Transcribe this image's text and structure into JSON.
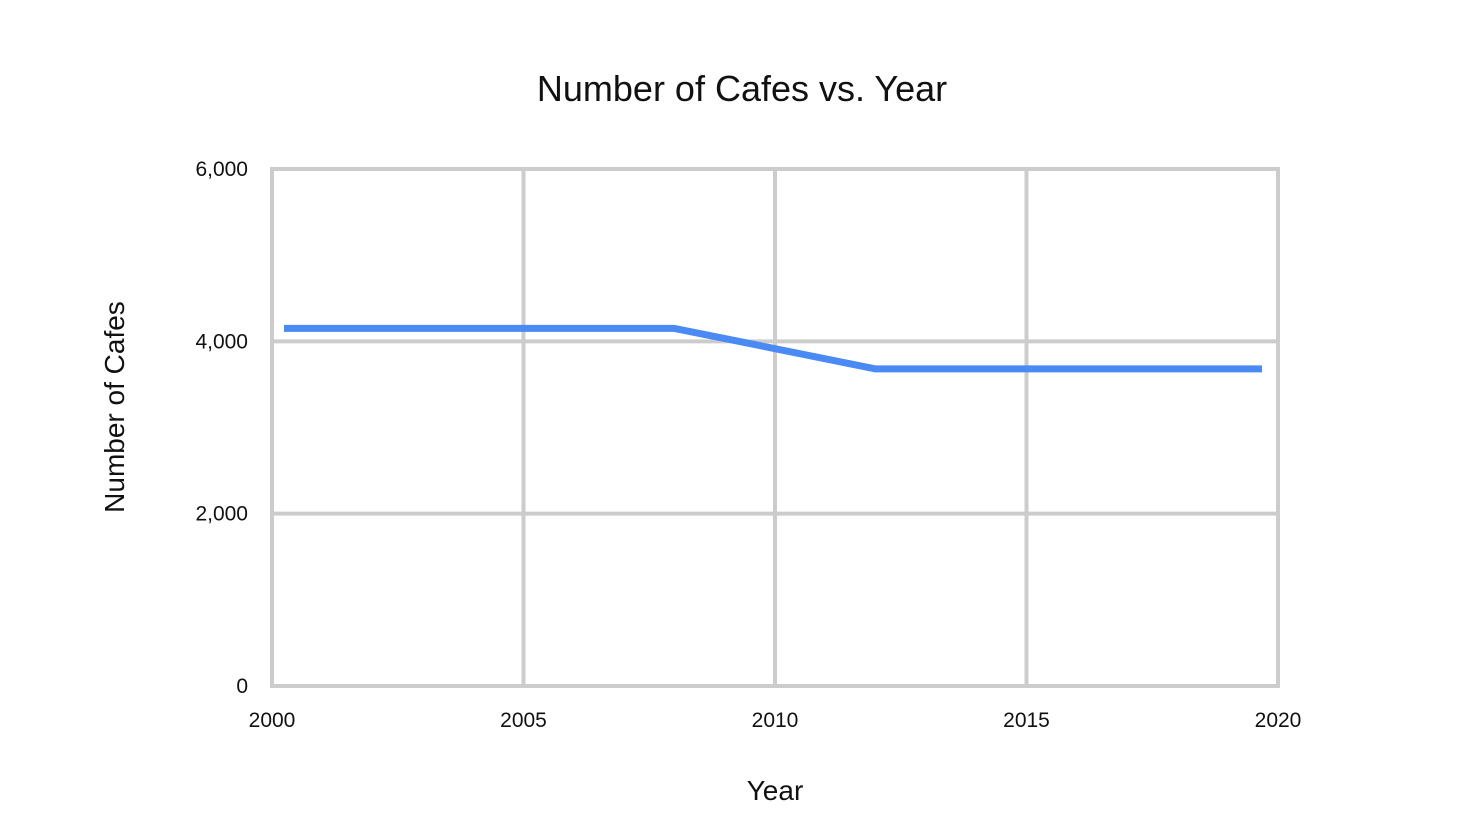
{
  "chart_data": {
    "type": "line",
    "title": "Number of Cafes vs. Year",
    "xlabel": "Year",
    "ylabel": "Number of Cafes",
    "xlim": [
      2000,
      2020
    ],
    "ylim": [
      0,
      6000
    ],
    "x_ticks": [
      2000,
      2005,
      2010,
      2015,
      2020
    ],
    "x_tick_labels": [
      "2000",
      "2005",
      "2010",
      "2015",
      "2020"
    ],
    "y_ticks": [
      0,
      2000,
      4000,
      6000
    ],
    "y_tick_labels": [
      "0",
      "2,000",
      "4,000",
      "6,000"
    ],
    "grid": true,
    "legend": "none",
    "series": [
      {
        "color": "#4a8af4",
        "points": [
          {
            "x": 2000,
            "y": 4150
          },
          {
            "x": 2008,
            "y": 4150
          },
          {
            "x": 2012,
            "y": 3680
          },
          {
            "x": 2020,
            "y": 3680
          }
        ]
      }
    ]
  }
}
